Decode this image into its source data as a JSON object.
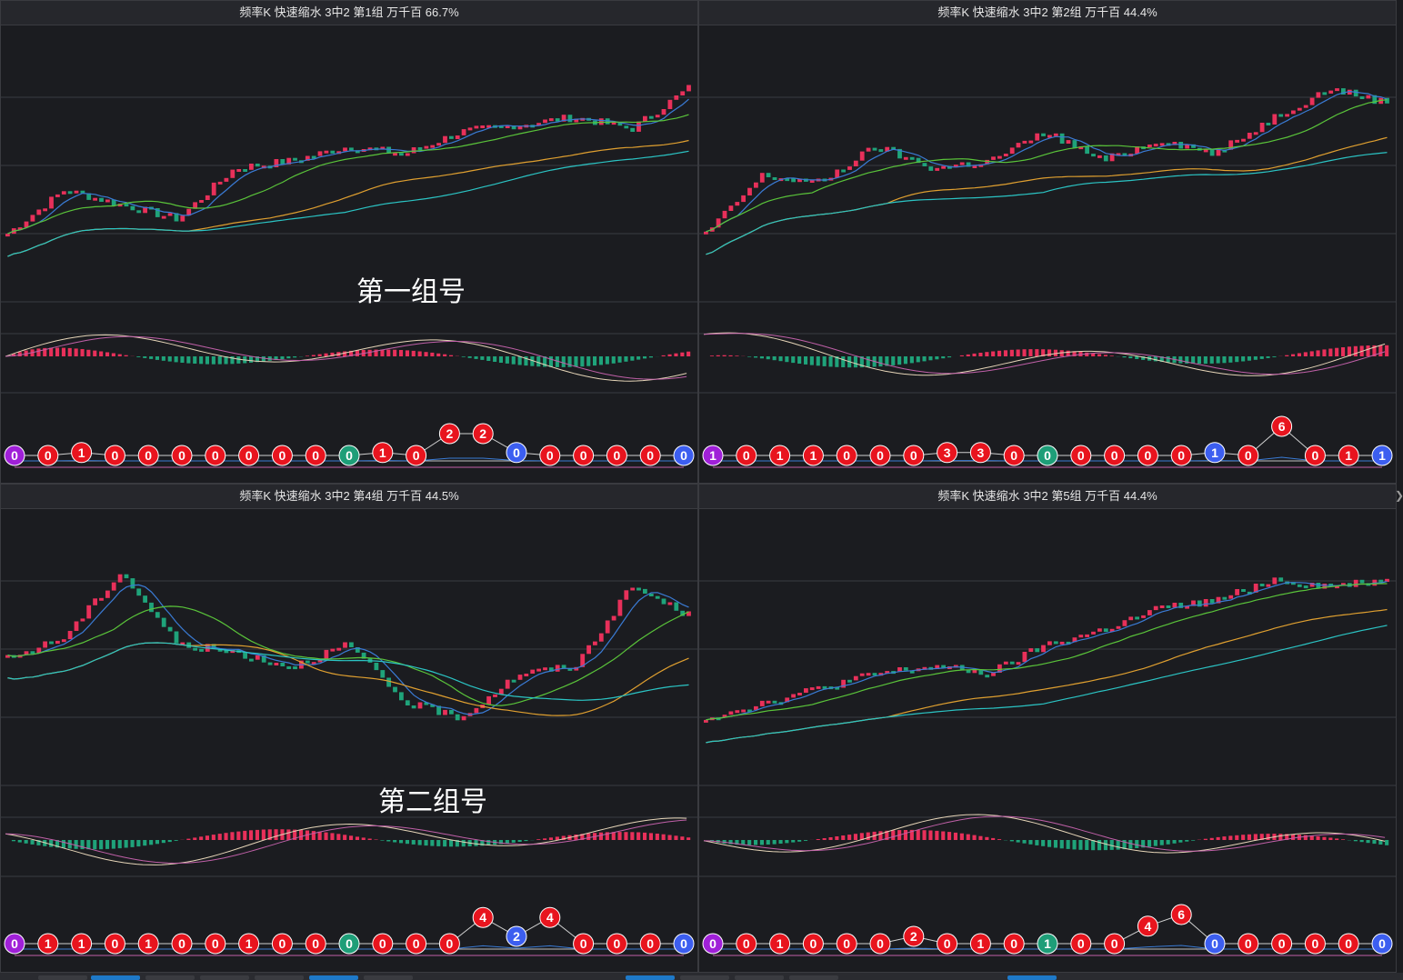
{
  "colors": {
    "up": "#e8305a",
    "down": "#1fa37a",
    "bg": "#1b1c20",
    "grid": "#3a3b42",
    "ma_blue": "#3a7bd5",
    "ma_green": "#5ac43a",
    "ma_orange": "#e0a030",
    "ma_cyan": "#2bc4c4",
    "dif": "#e6d5b8",
    "dea": "#c060a8",
    "ball_red": "#e8141e",
    "ball_blue": "#3c5ef0",
    "ball_green": "#1e9e78",
    "ball_purple": "#a020d8"
  },
  "annotations": {
    "group_one": "第一组号",
    "group_two": "第二组号"
  },
  "panels": [
    {
      "id": "p1",
      "title": "频率K  快速缩水  3中2 第1组  万千百  66.7%",
      "balls": [
        "0",
        "0",
        "1",
        "0",
        "0",
        "0",
        "0",
        "0",
        "0",
        "0",
        "0",
        "1",
        "0",
        "2",
        "2",
        "0",
        "0",
        "0",
        "0",
        "0",
        "0"
      ],
      "ball_colors": [
        "purple",
        "red",
        "red",
        "red",
        "red",
        "red",
        "red",
        "red",
        "red",
        "red",
        "green",
        "red",
        "red",
        "red",
        "red",
        "blue",
        "red",
        "red",
        "red",
        "red",
        "blue"
      ]
    },
    {
      "id": "p2",
      "title": "频率K  快速缩水  3中2 第2组  万千百  44.4%",
      "balls": [
        "1",
        "0",
        "1",
        "1",
        "0",
        "0",
        "0",
        "3",
        "3",
        "0",
        "0",
        "0",
        "0",
        "0",
        "0",
        "1",
        "0",
        "6",
        "0",
        "1",
        "1"
      ],
      "ball_colors": [
        "purple",
        "red",
        "red",
        "red",
        "red",
        "red",
        "red",
        "red",
        "red",
        "red",
        "green",
        "red",
        "red",
        "red",
        "red",
        "blue",
        "red",
        "red",
        "red",
        "red",
        "blue"
      ]
    },
    {
      "id": "p3",
      "title": "频率K  快速缩水  3中2 第4组  万千百  44.5%",
      "balls": [
        "0",
        "1",
        "1",
        "0",
        "1",
        "0",
        "0",
        "1",
        "0",
        "0",
        "0",
        "0",
        "0",
        "0",
        "4",
        "2",
        "4",
        "0",
        "0",
        "0",
        "0"
      ],
      "ball_colors": [
        "purple",
        "red",
        "red",
        "red",
        "red",
        "red",
        "red",
        "red",
        "red",
        "red",
        "green",
        "red",
        "red",
        "red",
        "red",
        "blue",
        "red",
        "red",
        "red",
        "red",
        "blue"
      ]
    },
    {
      "id": "p4",
      "title": "频率K  快速缩水  3中2 第5组  万千百  44.4%",
      "balls": [
        "0",
        "0",
        "1",
        "0",
        "0",
        "0",
        "2",
        "0",
        "1",
        "0",
        "1",
        "0",
        "0",
        "4",
        "6",
        "0",
        "0",
        "0",
        "0",
        "0",
        "0"
      ],
      "ball_colors": [
        "purple",
        "red",
        "red",
        "red",
        "red",
        "red",
        "red",
        "red",
        "red",
        "red",
        "green",
        "red",
        "red",
        "red",
        "red",
        "blue",
        "red",
        "red",
        "red",
        "red",
        "blue"
      ]
    }
  ]
}
